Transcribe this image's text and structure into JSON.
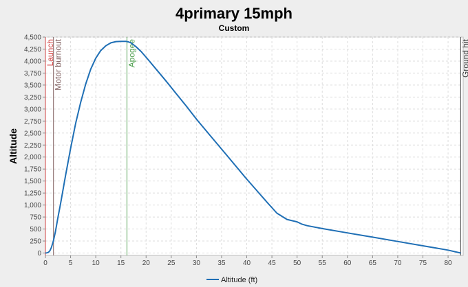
{
  "chart_data": {
    "type": "line",
    "title": "4primary 15mph",
    "subtitle": "Custom",
    "xlabel": "",
    "ylabel": "Altitude",
    "xlim": [
      0,
      83
    ],
    "ylim": [
      -50,
      4500
    ],
    "xticks": [
      0,
      5,
      10,
      15,
      20,
      25,
      30,
      35,
      40,
      45,
      50,
      55,
      60,
      65,
      70,
      75,
      80
    ],
    "yticks": [
      0,
      250,
      500,
      750,
      1000,
      1250,
      1500,
      1750,
      2000,
      2250,
      2500,
      2750,
      3000,
      3250,
      3500,
      3750,
      4000,
      4250,
      4500
    ],
    "grid": true,
    "legend": "bottom-center",
    "series": [
      {
        "name": "Altitude (ft)",
        "color": "#1f6fb5",
        "x": [
          0,
          0.3,
          0.6,
          0.9,
          1.2,
          1.6,
          2.0,
          2.5,
          3,
          4,
          5,
          6,
          7,
          8,
          9,
          10,
          11,
          12,
          13,
          14,
          15,
          15.5,
          16,
          16.5,
          17,
          18,
          19,
          20,
          22,
          24,
          26,
          28,
          30,
          32,
          34,
          36,
          38,
          40,
          42,
          44,
          46,
          48,
          50,
          51,
          52,
          55,
          60,
          65,
          70,
          75,
          80,
          82.5
        ],
        "y": [
          0,
          5,
          15,
          50,
          120,
          260,
          450,
          750,
          1020,
          1620,
          2180,
          2700,
          3140,
          3520,
          3830,
          4060,
          4220,
          4320,
          4380,
          4405,
          4410,
          4412,
          4410,
          4400,
          4380,
          4300,
          4200,
          4080,
          3830,
          3580,
          3320,
          3060,
          2790,
          2540,
          2290,
          2040,
          1790,
          1540,
          1300,
          1060,
          830,
          700,
          650,
          600,
          570,
          510,
          420,
          330,
          240,
          150,
          60,
          0
        ]
      }
    ],
    "events": [
      {
        "label": "Launch",
        "x": 0,
        "color": "#d04040"
      },
      {
        "label": "Motor burnout",
        "x": 1.6,
        "color": "#806060"
      },
      {
        "label": "Apogee",
        "x": 16.2,
        "color": "#50a050"
      },
      {
        "label": "Ground hit",
        "x": 82.5,
        "color": "#404040"
      }
    ],
    "tick_labels_y": [
      "0",
      "250",
      "500",
      "750",
      "1,000",
      "1,250",
      "1,500",
      "1,750",
      "2,000",
      "2,250",
      "2,500",
      "2,750",
      "3,000",
      "3,250",
      "3,500",
      "3,750",
      "4,000",
      "4,250",
      "4,500"
    ]
  }
}
